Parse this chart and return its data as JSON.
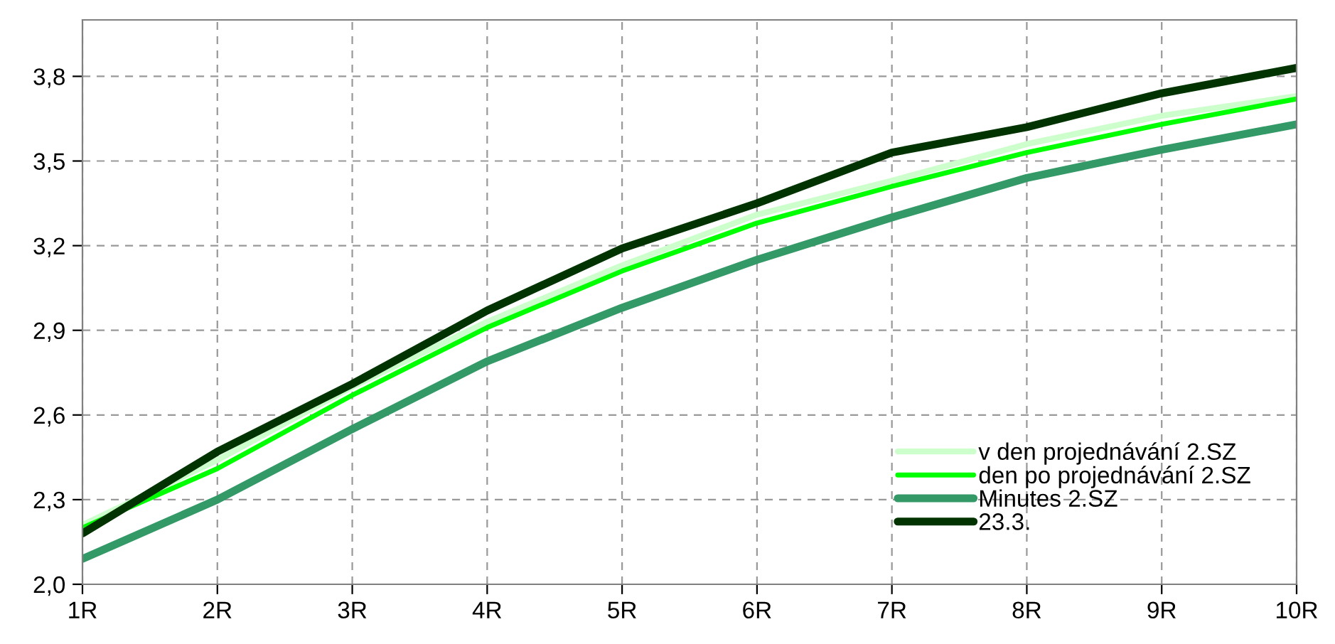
{
  "chart_data": {
    "type": "line",
    "categories": [
      "1R",
      "2R",
      "3R",
      "4R",
      "5R",
      "6R",
      "7R",
      "8R",
      "9R",
      "10R"
    ],
    "series": [
      {
        "name": "v den projednávání 2.SZ",
        "color": "#ccffcc",
        "values": [
          2.21,
          2.44,
          2.7,
          2.93,
          3.13,
          3.31,
          3.43,
          3.56,
          3.66,
          3.73
        ]
      },
      {
        "name": "den po projednávání 2.SZ",
        "color": "#00ff00",
        "values": [
          2.2,
          2.41,
          2.67,
          2.91,
          3.11,
          3.28,
          3.41,
          3.53,
          3.63,
          3.72
        ]
      },
      {
        "name": "Minutes 2.SZ",
        "color": "#339966",
        "values": [
          2.09,
          2.3,
          2.55,
          2.79,
          2.98,
          3.15,
          3.3,
          3.44,
          3.54,
          3.63
        ]
      },
      {
        "name": "23.3.",
        "color": "#003300",
        "values": [
          2.18,
          2.47,
          2.71,
          2.97,
          3.19,
          3.35,
          3.53,
          3.62,
          3.74,
          3.83
        ]
      }
    ],
    "ylim": [
      2.0,
      4.0
    ],
    "yticks": [
      {
        "value": 2.0,
        "label": "2,0"
      },
      {
        "value": 2.3,
        "label": "2,3"
      },
      {
        "value": 2.6,
        "label": "2,6"
      },
      {
        "value": 2.9,
        "label": "2,9"
      },
      {
        "value": 3.2,
        "label": "3,2"
      },
      {
        "value": 3.5,
        "label": "3,5"
      },
      {
        "value": 3.8,
        "label": "3,8"
      }
    ],
    "grid": true,
    "legend": "bottom right",
    "marker": "none",
    "line_style": "solid"
  }
}
